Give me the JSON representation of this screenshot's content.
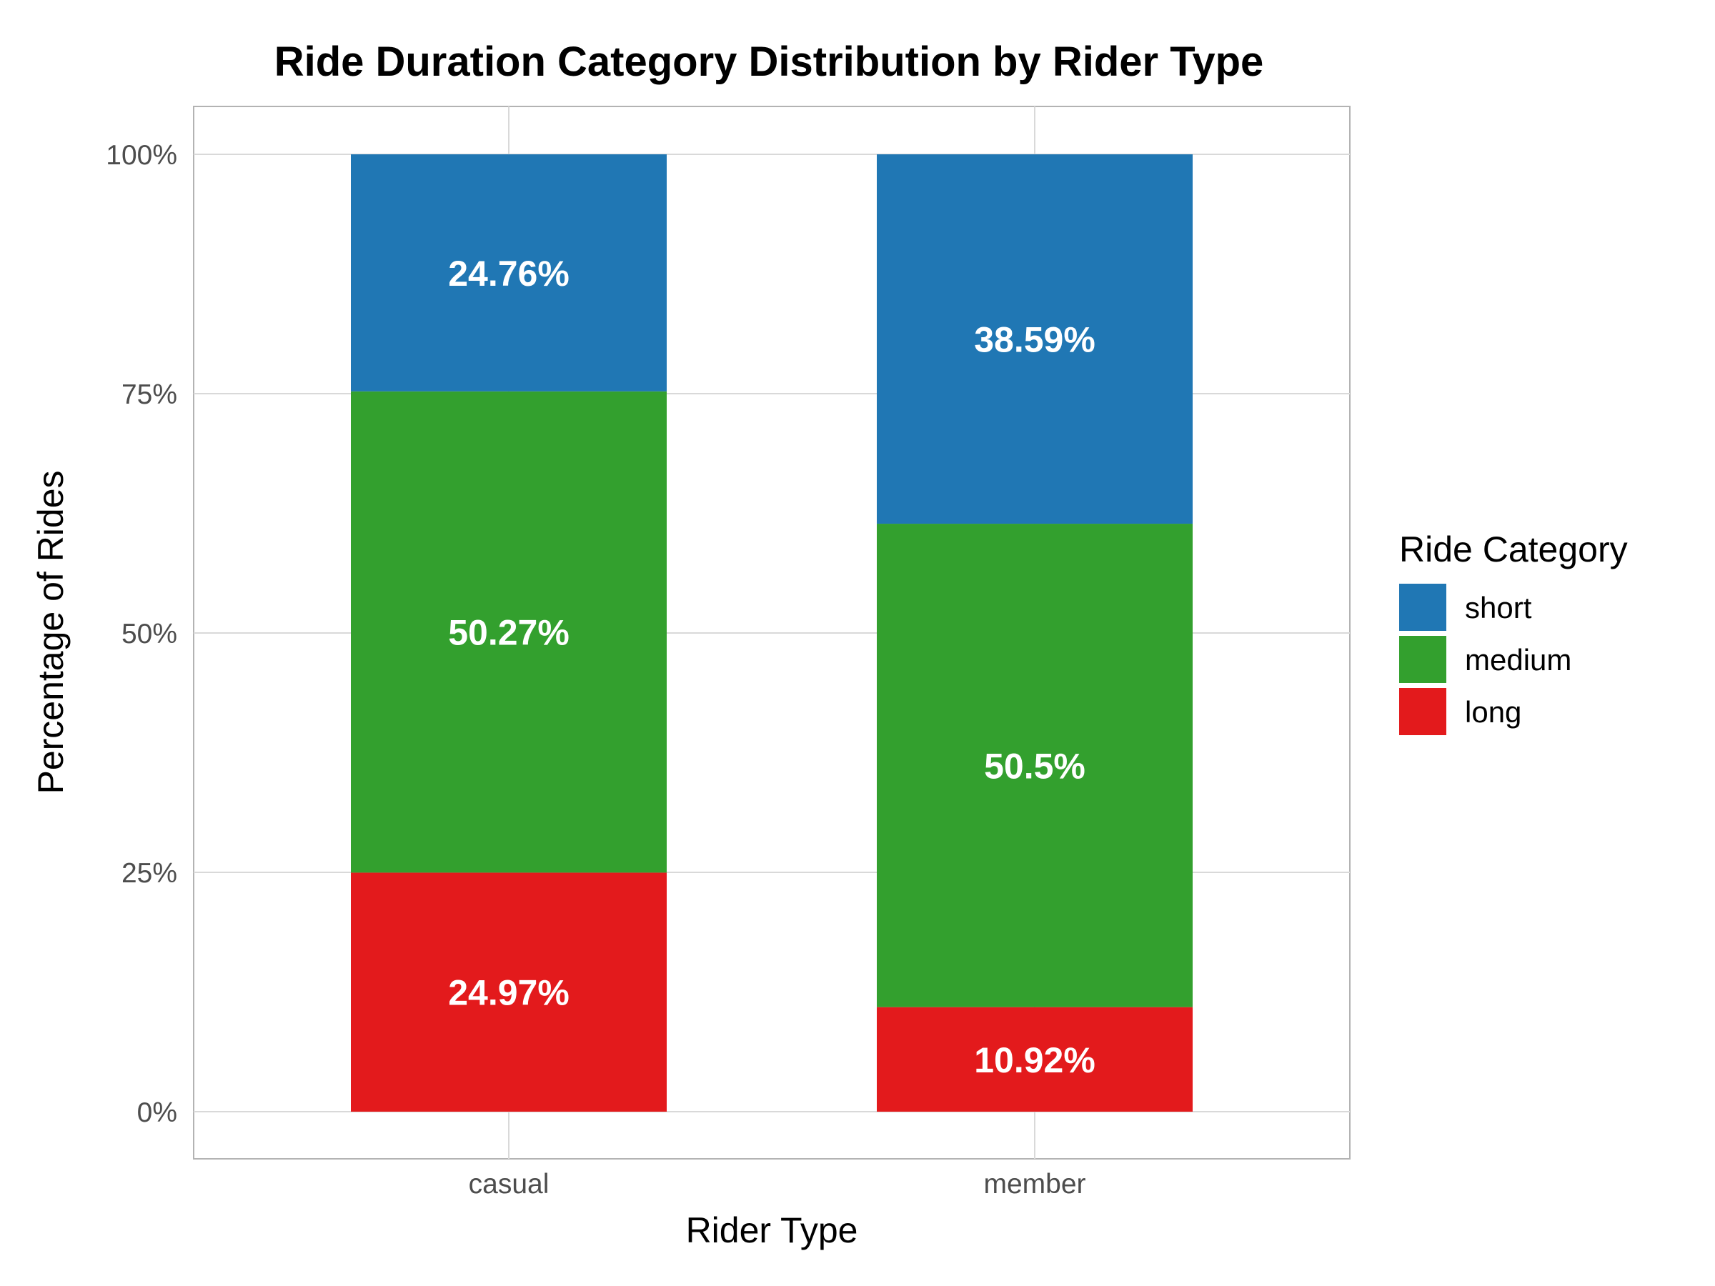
{
  "chart_data": {
    "type": "bar",
    "stacked": true,
    "percent_stacked": true,
    "title": "Ride Duration Category Distribution by Rider Type",
    "xlabel": "Rider Type",
    "ylabel": "Percentage of Rides",
    "categories": [
      "casual",
      "member"
    ],
    "y_ticks": [
      "0%",
      "25%",
      "50%",
      "75%",
      "100%"
    ],
    "ylim": [
      0,
      100
    ],
    "grid": true,
    "legend_title": "Ride Category",
    "legend_position": "right",
    "series": [
      {
        "name": "short",
        "color": "#2077b4",
        "values": [
          24.76,
          38.59
        ],
        "labels": [
          "24.76%",
          "38.59%"
        ]
      },
      {
        "name": "medium",
        "color": "#33a02e",
        "values": [
          50.27,
          50.5
        ],
        "labels": [
          "50.27%",
          "50.5%"
        ]
      },
      {
        "name": "long",
        "color": "#e31a1c",
        "values": [
          24.97,
          10.92
        ],
        "labels": [
          "24.97%",
          "10.92%"
        ]
      }
    ],
    "stack_order_bottom_to_top": [
      "long",
      "medium",
      "short"
    ]
  }
}
